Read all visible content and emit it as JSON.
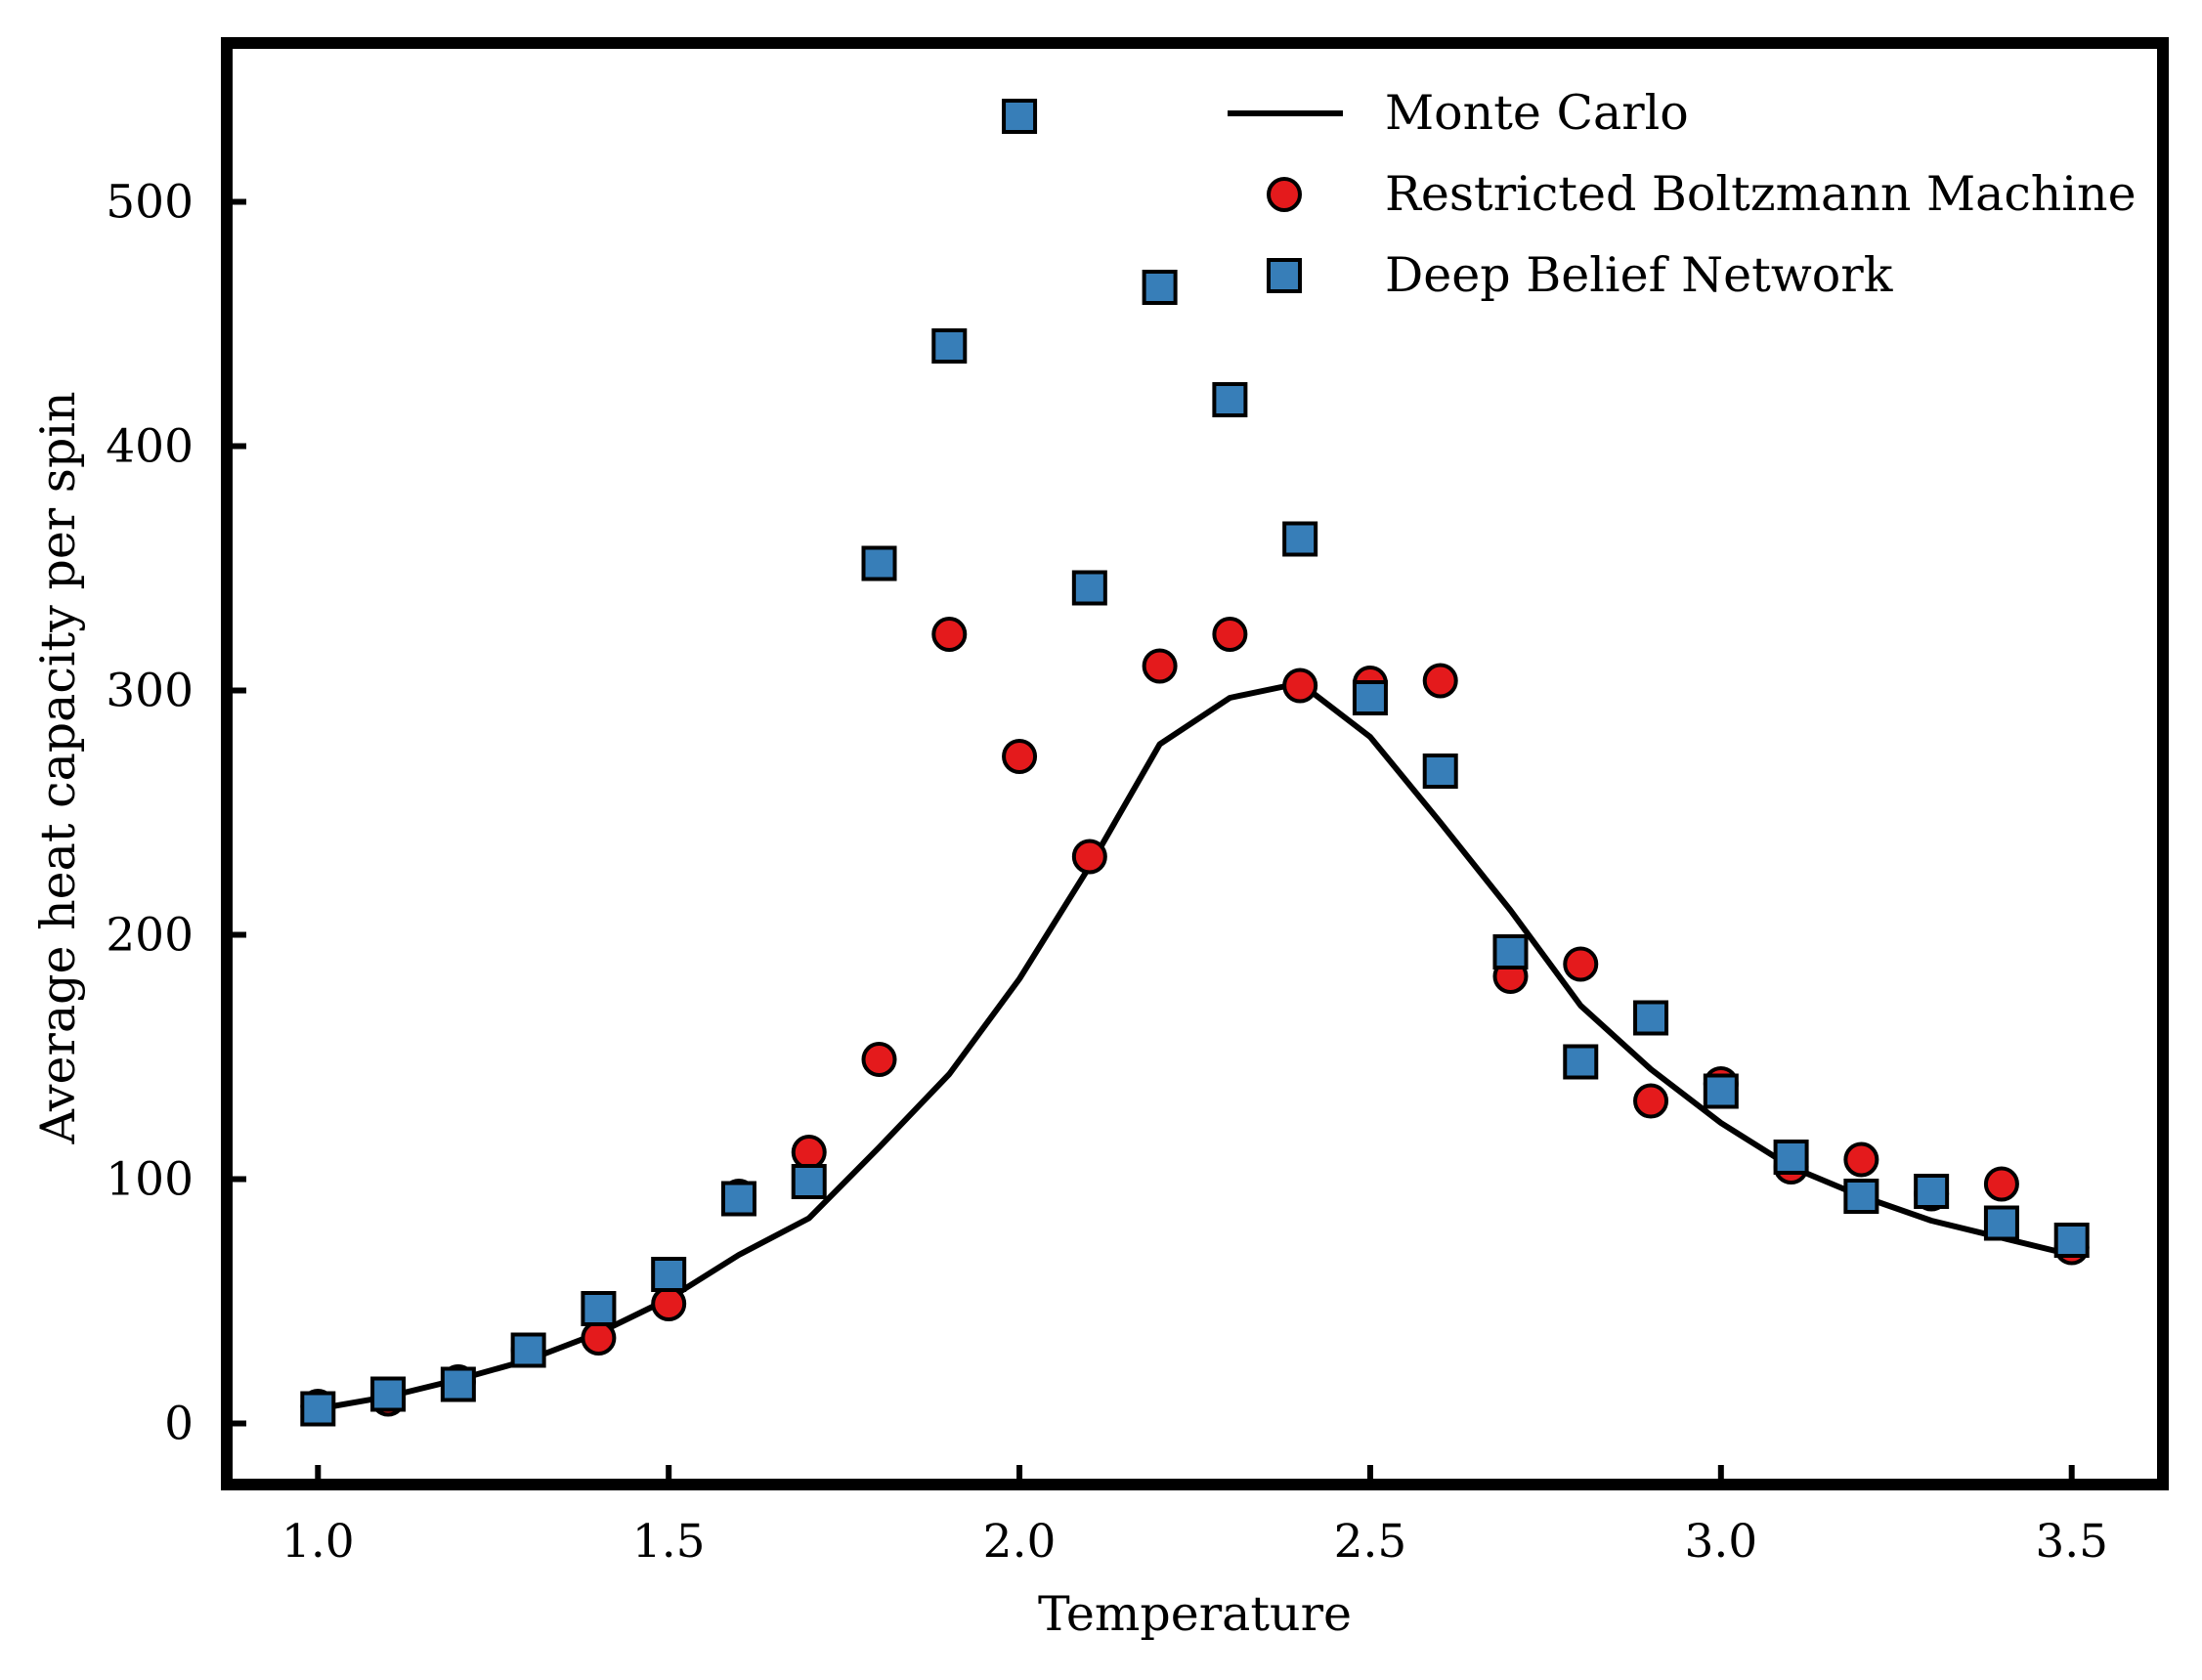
{
  "chart_data": {
    "type": "scatter",
    "title": "",
    "xlabel": "Temperature",
    "ylabel": "Average heat capacity per spin",
    "xlim": [
      0.87,
      3.63
    ],
    "ylim": [
      -25,
      565
    ],
    "xticks": [
      1.0,
      1.5,
      2.0,
      2.5,
      3.0,
      3.5
    ],
    "xtick_labels": [
      "1.0",
      "1.5",
      "2.0",
      "2.5",
      "3.0",
      "3.5"
    ],
    "yticks": [
      0,
      100,
      200,
      300,
      400,
      500
    ],
    "ytick_labels": [
      "0",
      "100",
      "200",
      "300",
      "400",
      "500"
    ],
    "grid": false,
    "legend_position": "top-right",
    "x": [
      1.0,
      1.1,
      1.2,
      1.3,
      1.4,
      1.5,
      1.6,
      1.7,
      1.8,
      1.9,
      2.0,
      2.1,
      2.2,
      2.3,
      2.4,
      2.5,
      2.6,
      2.7,
      2.8,
      2.9,
      3.0,
      3.1,
      3.2,
      3.3,
      3.4,
      3.5
    ],
    "series": [
      {
        "name": "Monte Carlo",
        "style": "line",
        "color": "#000000",
        "values": [
          6,
          11,
          18,
          26,
          37,
          51,
          69,
          84,
          113,
          143,
          182,
          228,
          278,
          297,
          303,
          281,
          246,
          210,
          171,
          145,
          123,
          105,
          93,
          83,
          76,
          69
        ]
      },
      {
        "name": "Restricted Boltzmann Machine",
        "style": "circle",
        "color": "#e41a1c",
        "values": [
          7,
          10,
          17,
          30,
          35,
          49,
          93,
          111,
          149,
          323,
          273,
          232,
          310,
          323,
          302,
          303,
          304,
          183,
          188,
          132,
          139,
          105,
          108,
          94,
          98,
          72
        ]
      },
      {
        "name": "Deep Belief Network",
        "style": "square",
        "color": "#377eb8",
        "values": [
          6,
          12,
          16,
          30,
          47,
          61,
          92,
          99,
          352,
          441,
          535,
          342,
          465,
          419,
          362,
          297,
          267,
          193,
          148,
          166,
          136,
          109,
          93,
          95,
          82,
          75
        ]
      }
    ]
  }
}
